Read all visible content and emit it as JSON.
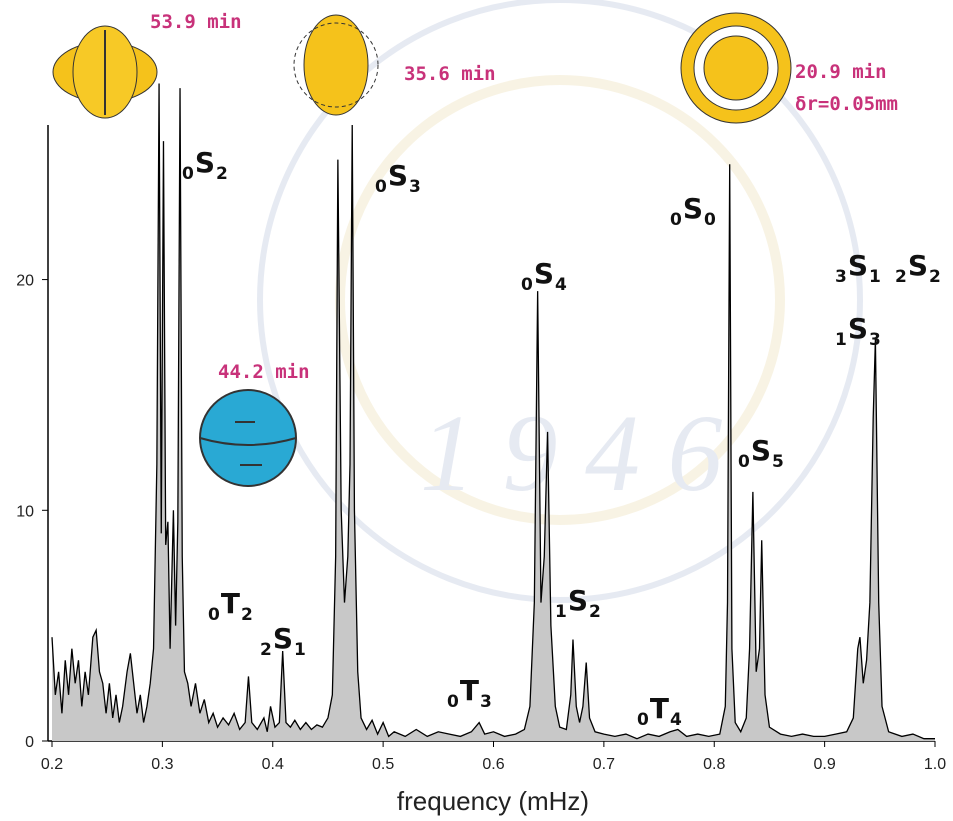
{
  "chart_data": {
    "type": "area",
    "x_label": "frequency (mHz)",
    "xlim": [
      0.2,
      1.0
    ],
    "ylim": [
      0,
      26.7
    ],
    "xticks": [
      0.2,
      0.3,
      0.4,
      0.5,
      0.6,
      0.7,
      0.8,
      0.9,
      {
        "value": 1,
        "label": "1.0"
      }
    ],
    "yticks": [
      0,
      10,
      20
    ],
    "fill_color": "#c8c8c8",
    "line_color": "#000000",
    "x": [
      0.2,
      0.203,
      0.206,
      0.209,
      0.212,
      0.215,
      0.218,
      0.221,
      0.224,
      0.227,
      0.23,
      0.233,
      0.237,
      0.24,
      0.243,
      0.246,
      0.249,
      0.252,
      0.255,
      0.258,
      0.261,
      0.264,
      0.268,
      0.271,
      0.274,
      0.277,
      0.28,
      0.283,
      0.286,
      0.289,
      0.292,
      0.295,
      0.297,
      0.299,
      0.301,
      0.303,
      0.305,
      0.307,
      0.31,
      0.312,
      0.314,
      0.316,
      0.318,
      0.32,
      0.323,
      0.326,
      0.33,
      0.334,
      0.338,
      0.342,
      0.346,
      0.35,
      0.355,
      0.36,
      0.365,
      0.37,
      0.375,
      0.378,
      0.381,
      0.386,
      0.392,
      0.395,
      0.398,
      0.402,
      0.406,
      0.409,
      0.412,
      0.416,
      0.42,
      0.425,
      0.43,
      0.435,
      0.44,
      0.445,
      0.45,
      0.454,
      0.457,
      0.459,
      0.462,
      0.465,
      0.468,
      0.47,
      0.472,
      0.474,
      0.477,
      0.48,
      0.485,
      0.49,
      0.495,
      0.5,
      0.505,
      0.51,
      0.52,
      0.53,
      0.54,
      0.55,
      0.56,
      0.57,
      0.58,
      0.587,
      0.592,
      0.6,
      0.61,
      0.62,
      0.628,
      0.633,
      0.637,
      0.64,
      0.643,
      0.646,
      0.649,
      0.652,
      0.656,
      0.66,
      0.666,
      0.67,
      0.672,
      0.675,
      0.678,
      0.681,
      0.684,
      0.687,
      0.692,
      0.7,
      0.71,
      0.72,
      0.73,
      0.74,
      0.75,
      0.76,
      0.767,
      0.775,
      0.785,
      0.795,
      0.805,
      0.81,
      0.812,
      0.814,
      0.816,
      0.819,
      0.824,
      0.829,
      0.832,
      0.835,
      0.838,
      0.841,
      0.843,
      0.846,
      0.85,
      0.86,
      0.87,
      0.88,
      0.89,
      0.9,
      0.91,
      0.92,
      0.926,
      0.93,
      0.932,
      0.935,
      0.938,
      0.941,
      0.944,
      0.946,
      0.949,
      0.952,
      0.958,
      0.97,
      0.98,
      0.99,
      1.0
    ],
    "values": [
      4.5,
      2.0,
      3.0,
      1.2,
      3.5,
      2.0,
      4.0,
      2.5,
      3.5,
      1.5,
      3.0,
      2.0,
      4.5,
      4.8,
      3.0,
      2.5,
      1.2,
      2.5,
      1.0,
      2.0,
      0.8,
      1.5,
      3.0,
      3.8,
      2.5,
      1.2,
      2.0,
      0.8,
      1.5,
      2.5,
      4.0,
      12.0,
      28.5,
      9.0,
      26.0,
      8.5,
      9.5,
      4.0,
      10.0,
      5.0,
      9.5,
      28.3,
      8.0,
      3.0,
      2.5,
      1.5,
      2.5,
      1.2,
      1.8,
      0.8,
      1.2,
      0.6,
      1.0,
      0.7,
      1.2,
      0.5,
      0.8,
      2.8,
      0.8,
      0.5,
      1.0,
      0.4,
      1.5,
      0.6,
      0.8,
      3.9,
      0.8,
      0.6,
      0.9,
      0.5,
      0.8,
      0.5,
      0.7,
      0.6,
      1.0,
      2.0,
      8.0,
      25.2,
      10.0,
      6.0,
      8.0,
      12.0,
      26.7,
      10.0,
      3.0,
      1.0,
      0.5,
      0.9,
      0.3,
      0.8,
      0.2,
      0.4,
      0.2,
      0.5,
      0.2,
      0.4,
      0.3,
      0.2,
      0.4,
      0.8,
      0.3,
      0.4,
      0.2,
      0.3,
      0.5,
      1.5,
      6.0,
      19.5,
      6.0,
      8.0,
      13.4,
      5.0,
      1.5,
      0.6,
      0.5,
      2.0,
      4.4,
      1.5,
      0.8,
      1.5,
      3.4,
      1.0,
      0.4,
      0.3,
      0.2,
      0.3,
      0.1,
      0.3,
      0.2,
      0.4,
      0.5,
      0.2,
      0.3,
      0.2,
      0.3,
      1.5,
      6.0,
      25.0,
      4.0,
      0.8,
      0.4,
      1.0,
      4.0,
      10.8,
      3.0,
      4.0,
      8.7,
      2.0,
      0.6,
      0.3,
      0.2,
      0.3,
      0.2,
      0.2,
      0.3,
      0.4,
      1.0,
      4.0,
      4.5,
      2.5,
      3.5,
      6.0,
      14.0,
      17.4,
      6.0,
      1.5,
      0.4,
      0.2,
      0.3,
      0.1,
      0.1
    ],
    "mode_labels": [
      {
        "pre": "0",
        "main": "S",
        "sub": "2"
      },
      {
        "pre": "0",
        "main": "S",
        "sub": "3"
      },
      {
        "pre": "0",
        "main": "S",
        "sub": "0"
      },
      {
        "pre": "0",
        "main": "S",
        "sub": "4"
      },
      {
        "pre": "3",
        "main": "S",
        "sub": "1"
      },
      {
        "pre": "2",
        "main": "S",
        "sub": "2"
      },
      {
        "pre": "1",
        "main": "S",
        "sub": "3"
      },
      {
        "pre": "0",
        "main": "S",
        "sub": "5"
      },
      {
        "pre": "0",
        "main": "T",
        "sub": "2"
      },
      {
        "pre": "2",
        "main": "S",
        "sub": "1"
      },
      {
        "pre": "1",
        "main": "S",
        "sub": "2"
      },
      {
        "pre": "0",
        "main": "T",
        "sub": "3"
      },
      {
        "pre": "0",
        "main": "T",
        "sub": "4"
      }
    ],
    "period_labels": [
      "53.9 min",
      "35.6 min",
      "44.2 min",
      "20.9 min",
      "δr=0.05mm"
    ],
    "period_color": "#c8327a"
  }
}
